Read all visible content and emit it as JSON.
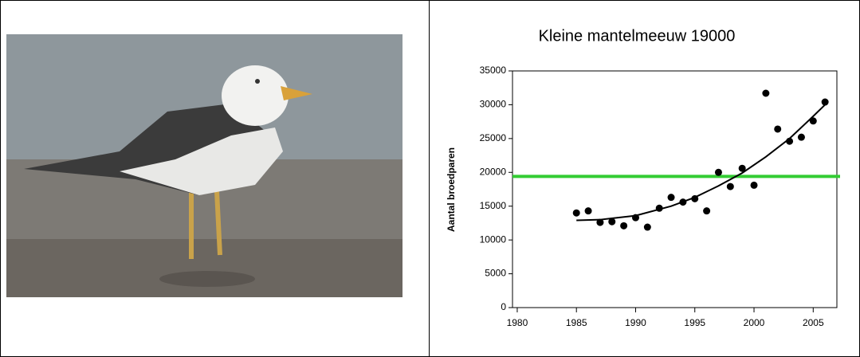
{
  "chart_data": {
    "type": "scatter",
    "title": "Kleine mantelmeeuw 19000",
    "y_label": "Aantal broedparen",
    "points": {
      "color": "#000000",
      "x": [
        1985,
        1986,
        1987,
        1988,
        1989,
        1990,
        1991,
        1992,
        1993,
        1994,
        1995,
        1996,
        1997,
        1998,
        1999,
        2000,
        2001,
        2002,
        2003,
        2004,
        2005,
        2006
      ],
      "y": [
        14000,
        14300,
        12600,
        12700,
        12100,
        13300,
        11900,
        14700,
        16300,
        15600,
        16100,
        14300,
        20000,
        17900,
        20600,
        18100,
        31700,
        26400,
        24600,
        25200,
        27600,
        30400
      ]
    },
    "trend": {
      "color": "#000000",
      "x": [
        1985,
        1987,
        1990,
        1993,
        1995,
        1997,
        1999,
        2001,
        2003,
        2005,
        2006
      ],
      "y": [
        12900,
        13000,
        13600,
        15000,
        16300,
        18000,
        19900,
        22300,
        25000,
        28300,
        30000
      ]
    },
    "reference_line": {
      "value": 19400,
      "color": "#33cc33"
    },
    "xlim": [
      1979.6,
      2007
    ],
    "ylim": [
      0,
      35000
    ],
    "xticks": [
      1980,
      1985,
      1990,
      1995,
      2000,
      2005
    ],
    "yticks": [
      0,
      5000,
      10000,
      15000,
      20000,
      25000,
      30000,
      35000
    ]
  }
}
